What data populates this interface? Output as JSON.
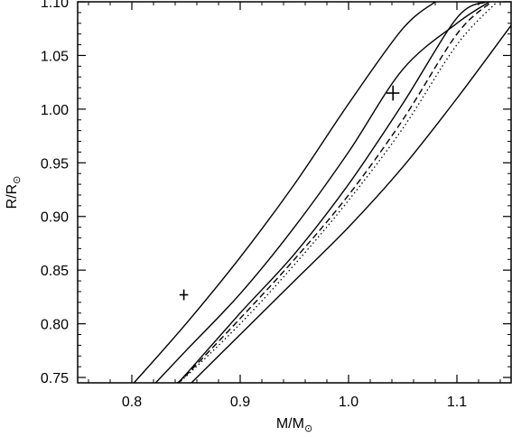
{
  "chart_data": {
    "type": "line",
    "title": "",
    "xlabel": "M/M",
    "xlabel_sub": "⊙",
    "ylabel": "R/R",
    "ylabel_sub": "⊙",
    "xlim": [
      0.75,
      1.15
    ],
    "ylim": [
      0.745,
      1.1
    ],
    "xticks": [
      0.8,
      0.9,
      1.0,
      1.1
    ],
    "xtick_labels": [
      "0.8",
      "0.9",
      "1.0",
      "1.1"
    ],
    "yticks": [
      0.75,
      0.8,
      0.85,
      0.9,
      0.95,
      1.0,
      1.05,
      1.1
    ],
    "ytick_labels": [
      "0.75",
      "0.80",
      "0.85",
      "0.90",
      "0.95",
      "1.00",
      "1.05",
      "1.10"
    ],
    "grid": false,
    "series": [
      {
        "style": "solid",
        "x": [
          0.802,
          0.85,
          0.9,
          0.95,
          1.0,
          1.05,
          1.08
        ],
        "y": [
          0.745,
          0.8,
          0.862,
          0.93,
          1.005,
          1.075,
          1.1
        ]
      },
      {
        "style": "solid",
        "x": [
          0.822,
          0.85,
          0.9,
          0.95,
          1.0,
          1.05,
          1.1,
          1.13
        ],
        "y": [
          0.745,
          0.775,
          0.828,
          0.89,
          0.96,
          1.037,
          1.08,
          1.1
        ]
      },
      {
        "style": "solid",
        "x": [
          0.842,
          0.85,
          0.9,
          0.95,
          1.0,
          1.05,
          1.1,
          1.127
        ],
        "y": [
          0.745,
          0.753,
          0.81,
          0.865,
          0.93,
          1.005,
          1.085,
          1.1
        ]
      },
      {
        "style": "dashed",
        "x": [
          0.842,
          0.85,
          0.9,
          0.95,
          1.0,
          1.05,
          1.1,
          1.132
        ],
        "y": [
          0.745,
          0.752,
          0.805,
          0.86,
          0.92,
          0.99,
          1.07,
          1.1
        ]
      },
      {
        "style": "dotted",
        "x": [
          0.842,
          0.85,
          0.9,
          0.95,
          1.0,
          1.05,
          1.1,
          1.137
        ],
        "y": [
          0.745,
          0.751,
          0.8,
          0.855,
          0.915,
          0.982,
          1.06,
          1.1
        ]
      },
      {
        "style": "solid",
        "x": [
          0.855,
          0.9,
          0.95,
          1.0,
          1.05,
          1.1,
          1.15
        ],
        "y": [
          0.745,
          0.79,
          0.84,
          0.89,
          0.946,
          1.01,
          1.078
        ]
      }
    ],
    "points": [
      {
        "x": 0.848,
        "y": 0.827,
        "xerr": 0.004,
        "yerr": 0.005
      },
      {
        "x": 1.041,
        "y": 1.015,
        "xerr": 0.006,
        "yerr": 0.007
      }
    ]
  }
}
